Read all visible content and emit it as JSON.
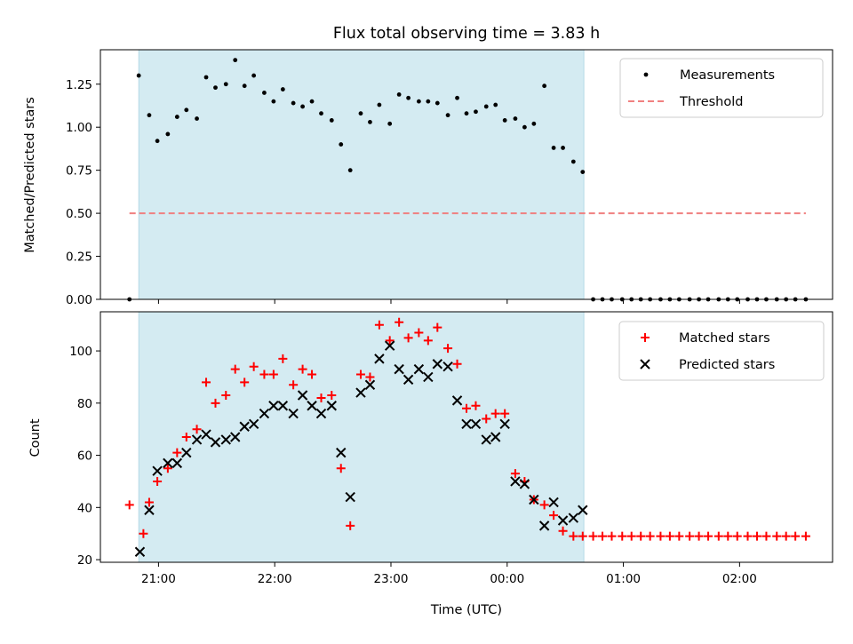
{
  "chart_data": [
    {
      "type": "scatter",
      "title": "Flux total observing time = 3.83 h",
      "ylabel": "Matched/Predicted stars",
      "xlabel": "",
      "x_unit": "hours since 20:00 UTC",
      "xlim": [
        0.5,
        6.8
      ],
      "ylim": [
        0.0,
        1.45
      ],
      "yticks": [
        0.0,
        0.25,
        0.5,
        0.75,
        1.0,
        1.25
      ],
      "ytick_labels": [
        "0.00",
        "0.25",
        "0.50",
        "0.75",
        "1.00",
        "1.25"
      ],
      "legend_position": "top-right",
      "highlight_span": [
        0.83,
        4.66
      ],
      "highlight_color": "#d4ebf2",
      "series": [
        {
          "name": "Measurements",
          "marker": "dot",
          "color": "#000000",
          "points": [
            [
              0.75,
              0.0
            ],
            [
              0.83,
              1.3
            ],
            [
              0.92,
              1.07
            ],
            [
              0.99,
              0.92
            ],
            [
              1.08,
              0.96
            ],
            [
              1.16,
              1.06
            ],
            [
              1.24,
              1.1
            ],
            [
              1.33,
              1.05
            ],
            [
              1.41,
              1.29
            ],
            [
              1.49,
              1.23
            ],
            [
              1.58,
              1.25
            ],
            [
              1.66,
              1.39
            ],
            [
              1.74,
              1.24
            ],
            [
              1.82,
              1.3
            ],
            [
              1.91,
              1.2
            ],
            [
              1.99,
              1.15
            ],
            [
              2.07,
              1.22
            ],
            [
              2.16,
              1.14
            ],
            [
              2.24,
              1.12
            ],
            [
              2.32,
              1.15
            ],
            [
              2.4,
              1.08
            ],
            [
              2.49,
              1.04
            ],
            [
              2.57,
              0.9
            ],
            [
              2.65,
              0.75
            ],
            [
              2.74,
              1.08
            ],
            [
              2.82,
              1.03
            ],
            [
              2.9,
              1.13
            ],
            [
              2.99,
              1.02
            ],
            [
              3.07,
              1.19
            ],
            [
              3.15,
              1.17
            ],
            [
              3.24,
              1.15
            ],
            [
              3.32,
              1.15
            ],
            [
              3.4,
              1.14
            ],
            [
              3.49,
              1.07
            ],
            [
              3.57,
              1.17
            ],
            [
              3.65,
              1.08
            ],
            [
              3.73,
              1.09
            ],
            [
              3.82,
              1.12
            ],
            [
              3.9,
              1.13
            ],
            [
              3.98,
              1.04
            ],
            [
              4.07,
              1.05
            ],
            [
              4.15,
              1.0
            ],
            [
              4.23,
              1.02
            ],
            [
              4.32,
              1.24
            ],
            [
              4.4,
              0.88
            ],
            [
              4.48,
              0.88
            ],
            [
              4.57,
              0.8
            ],
            [
              4.65,
              0.74
            ],
            [
              4.74,
              0.0
            ],
            [
              4.82,
              0.0
            ],
            [
              4.9,
              0.0
            ],
            [
              4.99,
              0.0
            ],
            [
              5.07,
              0.0
            ],
            [
              5.15,
              0.0
            ],
            [
              5.23,
              0.0
            ],
            [
              5.32,
              0.0
            ],
            [
              5.4,
              0.0
            ],
            [
              5.48,
              0.0
            ],
            [
              5.57,
              0.0
            ],
            [
              5.65,
              0.0
            ],
            [
              5.73,
              0.0
            ],
            [
              5.82,
              0.0
            ],
            [
              5.9,
              0.0
            ],
            [
              5.98,
              0.0
            ],
            [
              6.07,
              0.0
            ],
            [
              6.15,
              0.0
            ],
            [
              6.23,
              0.0
            ],
            [
              6.32,
              0.0
            ],
            [
              6.4,
              0.0
            ],
            [
              6.48,
              0.0
            ],
            [
              6.57,
              0.0
            ]
          ]
        },
        {
          "name": "Threshold",
          "marker": "dashed-line",
          "color": "#f08080",
          "points": [
            [
              0.75,
              0.5
            ],
            [
              6.57,
              0.5
            ]
          ]
        }
      ]
    },
    {
      "type": "scatter",
      "title": "",
      "ylabel": "Count",
      "xlabel": "Time (UTC)",
      "x_unit": "hours since 20:00 UTC",
      "xlim": [
        0.5,
        6.8
      ],
      "ylim": [
        19,
        115
      ],
      "yticks": [
        20,
        40,
        60,
        80,
        100
      ],
      "ytick_labels": [
        "20",
        "40",
        "60",
        "80",
        "100"
      ],
      "xticks": [
        1,
        2,
        3,
        4,
        5,
        6
      ],
      "xtick_labels": [
        "21:00",
        "22:00",
        "23:00",
        "00:00",
        "01:00",
        "02:00"
      ],
      "legend_position": "top-right",
      "highlight_span": [
        0.83,
        4.66
      ],
      "highlight_color": "#d4ebf2",
      "series": [
        {
          "name": "Matched stars",
          "marker": "plus",
          "color": "#ff0000",
          "points": [
            [
              0.75,
              41
            ],
            [
              0.87,
              30
            ],
            [
              0.92,
              42
            ],
            [
              0.99,
              50
            ],
            [
              1.08,
              55
            ],
            [
              1.16,
              61
            ],
            [
              1.24,
              67
            ],
            [
              1.33,
              70
            ],
            [
              1.41,
              88
            ],
            [
              1.49,
              80
            ],
            [
              1.58,
              83
            ],
            [
              1.66,
              93
            ],
            [
              1.74,
              88
            ],
            [
              1.82,
              94
            ],
            [
              1.91,
              91
            ],
            [
              1.99,
              91
            ],
            [
              2.07,
              97
            ],
            [
              2.16,
              87
            ],
            [
              2.24,
              93
            ],
            [
              2.32,
              91
            ],
            [
              2.4,
              82
            ],
            [
              2.49,
              83
            ],
            [
              2.57,
              55
            ],
            [
              2.65,
              33
            ],
            [
              2.74,
              91
            ],
            [
              2.82,
              90
            ],
            [
              2.9,
              110
            ],
            [
              2.99,
              104
            ],
            [
              3.07,
              111
            ],
            [
              3.15,
              105
            ],
            [
              3.24,
              107
            ],
            [
              3.32,
              104
            ],
            [
              3.4,
              109
            ],
            [
              3.49,
              101
            ],
            [
              3.57,
              95
            ],
            [
              3.65,
              78
            ],
            [
              3.73,
              79
            ],
            [
              3.82,
              74
            ],
            [
              3.9,
              76
            ],
            [
              3.98,
              76
            ],
            [
              4.07,
              53
            ],
            [
              4.15,
              50
            ],
            [
              4.23,
              43
            ],
            [
              4.32,
              41
            ],
            [
              4.4,
              37
            ],
            [
              4.48,
              31
            ],
            [
              4.57,
              29
            ],
            [
              4.65,
              29
            ],
            [
              4.74,
              29
            ],
            [
              4.82,
              29
            ],
            [
              4.9,
              29
            ],
            [
              4.99,
              29
            ],
            [
              5.07,
              29
            ],
            [
              5.15,
              29
            ],
            [
              5.23,
              29
            ],
            [
              5.32,
              29
            ],
            [
              5.4,
              29
            ],
            [
              5.48,
              29
            ],
            [
              5.57,
              29
            ],
            [
              5.65,
              29
            ],
            [
              5.73,
              29
            ],
            [
              5.82,
              29
            ],
            [
              5.9,
              29
            ],
            [
              5.98,
              29
            ],
            [
              6.07,
              29
            ],
            [
              6.15,
              29
            ],
            [
              6.23,
              29
            ],
            [
              6.32,
              29
            ],
            [
              6.4,
              29
            ],
            [
              6.48,
              29
            ],
            [
              6.57,
              29
            ]
          ]
        },
        {
          "name": "Predicted stars",
          "marker": "x",
          "color": "#000000",
          "points": [
            [
              0.84,
              23
            ],
            [
              0.92,
              39
            ],
            [
              0.99,
              54
            ],
            [
              1.08,
              57
            ],
            [
              1.16,
              57
            ],
            [
              1.24,
              61
            ],
            [
              1.33,
              66
            ],
            [
              1.41,
              68
            ],
            [
              1.49,
              65
            ],
            [
              1.58,
              66
            ],
            [
              1.66,
              67
            ],
            [
              1.74,
              71
            ],
            [
              1.82,
              72
            ],
            [
              1.91,
              76
            ],
            [
              1.99,
              79
            ],
            [
              2.07,
              79
            ],
            [
              2.16,
              76
            ],
            [
              2.24,
              83
            ],
            [
              2.32,
              79
            ],
            [
              2.4,
              76
            ],
            [
              2.49,
              79
            ],
            [
              2.57,
              61
            ],
            [
              2.65,
              44
            ],
            [
              2.74,
              84
            ],
            [
              2.82,
              87
            ],
            [
              2.9,
              97
            ],
            [
              2.99,
              102
            ],
            [
              3.07,
              93
            ],
            [
              3.15,
              89
            ],
            [
              3.24,
              93
            ],
            [
              3.32,
              90
            ],
            [
              3.4,
              95
            ],
            [
              3.49,
              94
            ],
            [
              3.57,
              81
            ],
            [
              3.65,
              72
            ],
            [
              3.73,
              72
            ],
            [
              3.82,
              66
            ],
            [
              3.9,
              67
            ],
            [
              3.98,
              72
            ],
            [
              4.07,
              50
            ],
            [
              4.15,
              49
            ],
            [
              4.23,
              43
            ],
            [
              4.32,
              33
            ],
            [
              4.4,
              42
            ],
            [
              4.48,
              35
            ],
            [
              4.57,
              36
            ],
            [
              4.65,
              39
            ]
          ]
        }
      ]
    }
  ]
}
